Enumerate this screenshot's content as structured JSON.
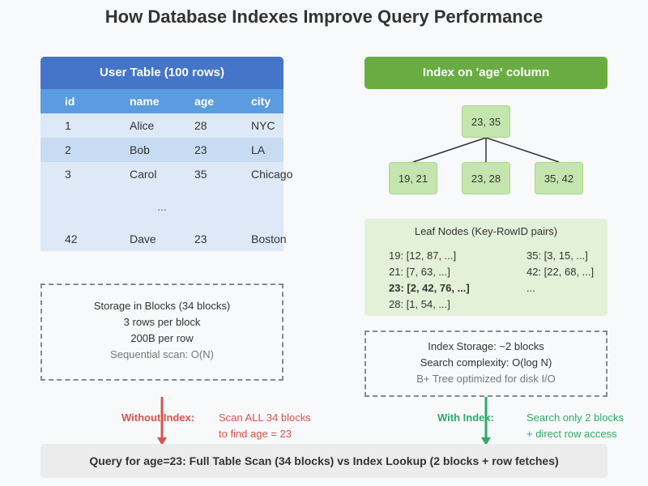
{
  "title": "How Database Indexes Improve Query Performance",
  "user_table": {
    "header": "User Table (100 rows)",
    "columns": [
      "id",
      "name",
      "age",
      "city"
    ],
    "rows": [
      [
        "1",
        "Alice",
        "28",
        "NYC"
      ],
      [
        "2",
        "Bob",
        "23",
        "LA"
      ],
      [
        "3",
        "Carol",
        "35",
        "Chicago"
      ]
    ],
    "ellipsis": "...",
    "last_row": [
      "42",
      "Dave",
      "23",
      "Boston"
    ]
  },
  "storage_box": {
    "lines": [
      "Storage in Blocks (34 blocks)",
      "3 rows per block",
      "200B per row"
    ],
    "note": "Sequential scan: O(N)"
  },
  "index": {
    "header": "Index on 'age' column",
    "root": "23, 35",
    "children": [
      "19, 21",
      "23, 28",
      "35, 42"
    ],
    "leaf_title": "Leaf Nodes (Key-RowID pairs)",
    "leaf_left": [
      "19: [12, 87, ...]",
      "21: [7, 63, ...]",
      "23: [2, 42, 76, ...]",
      "28: [1, 54, ...]"
    ],
    "leaf_right": [
      "35: [3, 15, ...]",
      "42: [22, 68, ...]",
      "..."
    ],
    "highlight_entry": "23: [2, 42, 76, ...]"
  },
  "index_storage": {
    "lines": [
      "Index Storage: ~2 blocks",
      "Search complexity: O(log N)"
    ],
    "note": "B+ Tree optimized for disk I/O"
  },
  "without_index": {
    "label": "Without Index:",
    "lines": [
      "Scan ALL 34 blocks",
      "to find age = 23"
    ]
  },
  "with_index": {
    "label": "With Index:",
    "lines": [
      "Search only 2 blocks",
      "+ direct row access"
    ]
  },
  "query": "Query for age=23: Full Table Scan (34 blocks) vs Index Lookup (2 blocks + row fetches)",
  "colors": {
    "table_header": "#4575c9",
    "table_columns": "#5b9be0",
    "index_header": "#69ad42",
    "node": "#c4e5ae",
    "without": "#d9534f",
    "with": "#2eaa6a"
  }
}
